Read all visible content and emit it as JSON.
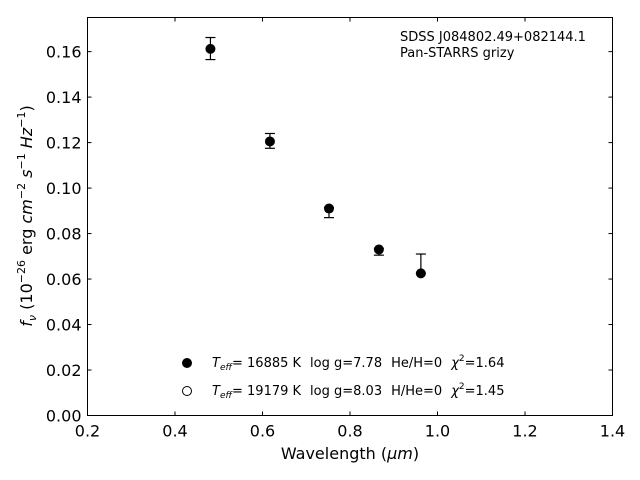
{
  "chart_data": {
    "type": "scatter",
    "title": "",
    "xlabel_prefix": "Wavelength (",
    "xlabel_unit": "μm",
    "xlabel_suffix": ")",
    "ylabel_parts": {
      "f": "f",
      "nu": "ν",
      "open": " (10",
      "exp1": "−26",
      "erg": " erg ",
      "cm": "cm",
      "exp2": "−2",
      "s": " s",
      "exp3": "−1",
      "hz": " Hz",
      "exp4": "−1",
      "close": ")"
    },
    "xlim": [
      0.2,
      1.4
    ],
    "ylim": [
      0.0,
      0.175
    ],
    "xticks": [
      0.2,
      0.4,
      0.6,
      0.8,
      1.0,
      1.2,
      1.4
    ],
    "xtick_labels": [
      "0.2",
      "0.4",
      "0.6",
      "0.8",
      "1.0",
      "1.2",
      "1.4"
    ],
    "yticks": [
      0.0,
      0.02,
      0.04,
      0.06,
      0.08,
      0.1,
      0.12,
      0.14,
      0.16
    ],
    "ytick_labels": [
      "0.00",
      "0.02",
      "0.04",
      "0.06",
      "0.08",
      "0.10",
      "0.12",
      "0.14",
      "0.16"
    ],
    "grid": false,
    "annotation": {
      "line1": "SDSS J084802.49+082144.1",
      "line2": "Pan-STARRS grizy"
    },
    "observed": {
      "x": [
        0.481,
        0.617,
        0.752,
        0.866,
        0.962
      ],
      "y": [
        0.1612,
        0.1205,
        0.0905,
        0.0725,
        0.063
      ],
      "err_low": [
        0.0047,
        0.003,
        0.0035,
        0.002,
        0.0005
      ],
      "err_high": [
        0.005,
        0.0035,
        0.001,
        0.001,
        0.008
      ]
    },
    "models": [
      {
        "name": "He",
        "marker": "filled",
        "x": [
          0.481,
          0.617,
          0.752,
          0.866,
          0.962
        ],
        "y": [
          0.1612,
          0.1205,
          0.091,
          0.073,
          0.0625
        ],
        "legend": {
          "T": "T",
          "sub": "eff",
          "teff": "= 16885 K",
          "logg": "log g=7.78",
          "comp": "He/H=0",
          "chi": "χ",
          "chi_exp": "2",
          "chi_val": "=1.64"
        }
      },
      {
        "name": "H",
        "marker": "open",
        "x": [],
        "y": [],
        "legend": {
          "T": "T",
          "sub": "eff",
          "teff": "= 19179 K",
          "logg": "log g=8.03",
          "comp": "H/He=0",
          "chi": "χ",
          "chi_exp": "2",
          "chi_val": "=1.45"
        }
      }
    ],
    "colors": {
      "axis": "#000000",
      "marker": "#000000",
      "background": "#ffffff"
    }
  }
}
